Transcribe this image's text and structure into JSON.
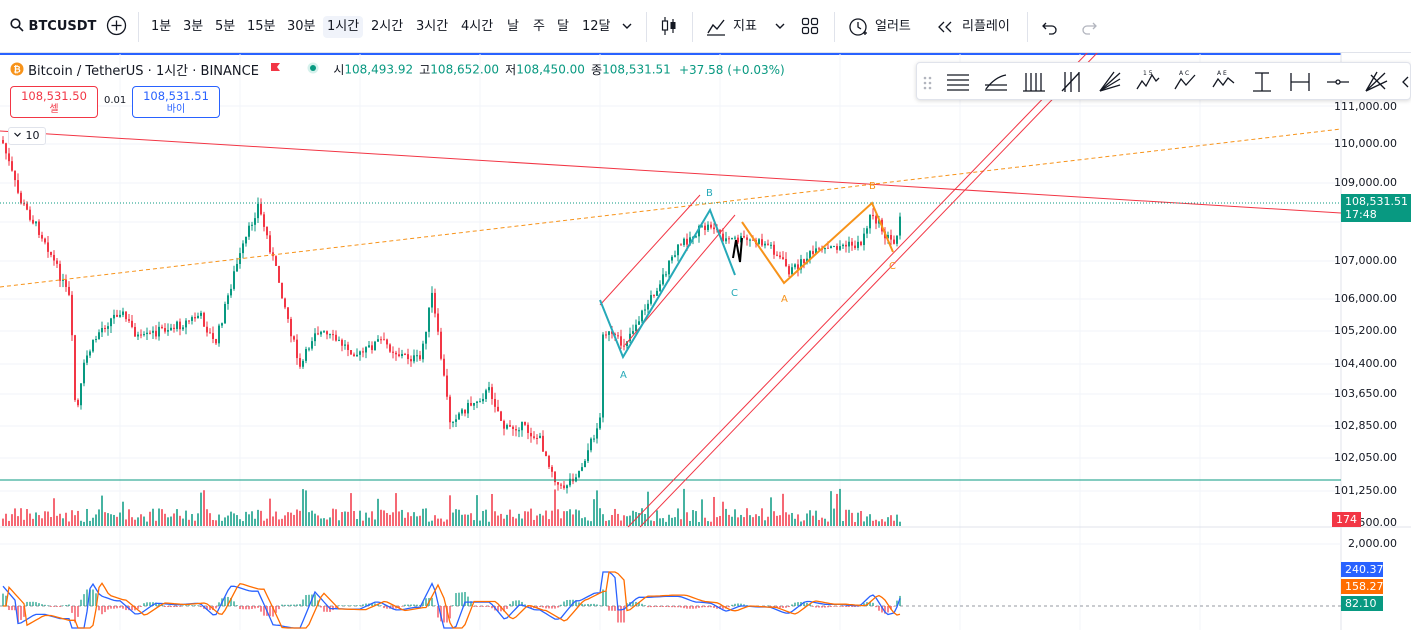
{
  "toolbar": {
    "symbol": "BTCUSDT",
    "timeframes": [
      "1분",
      "3분",
      "5분",
      "15분",
      "30분",
      "1시간",
      "2시간",
      "3시간",
      "4시간",
      "날",
      "주",
      "달",
      "12달"
    ],
    "active_timeframe": "1시간",
    "indicators_label": "지표",
    "alert_label": "얼러트",
    "replay_label": "리플레이"
  },
  "legend": {
    "name": "Bitcoin / TetherUS · 1시간 · BINANCE",
    "open_label": "시",
    "open": "108,493.92",
    "high_label": "고",
    "high": "108,652.00",
    "low_label": "저",
    "low": "108,450.00",
    "close_label": "종",
    "close": "108,531.51",
    "change": "+37.58 (+0.03%)"
  },
  "order": {
    "sell_price": "108,531.50",
    "sell_label": "셀",
    "spread": "0.01",
    "buy_price": "108,531.51",
    "buy_label": "바이"
  },
  "interval_chip": "10",
  "price_axis": [
    "111,000.00",
    "110,000.00",
    "109,000.00",
    "107,000.00",
    "106,000.00",
    "105,200.00",
    "104,400.00",
    "103,650.00",
    "102,850.00",
    "102,050.00",
    "101,250.00",
    "500.00"
  ],
  "price_tag": {
    "price": "108,531.51",
    "countdown": "17:48"
  },
  "volume_tag": "174",
  "indicator_axis": [
    "2,000.00"
  ],
  "indicator_tags": [
    "240.37",
    "158.27",
    "82.10"
  ],
  "wave_labels_cyan": [
    "A",
    "B",
    "C"
  ],
  "wave_labels_orange": [
    "A",
    "B",
    "C"
  ],
  "colors": {
    "up": "#089981",
    "down": "#f23645",
    "accent": "#2962ff",
    "wave_cyan": "#26a9b8",
    "wave_orange": "#f7931a"
  },
  "icons": {
    "symbol_search": "search-icon",
    "compare": "plus-circle-icon",
    "candles": "candlestick-icon",
    "indicators": "indicators-icon",
    "layout": "grid-icon",
    "alert": "alarm-icon",
    "replay": "rewind-icon",
    "undo": "undo-icon",
    "redo": "redo-icon"
  }
}
